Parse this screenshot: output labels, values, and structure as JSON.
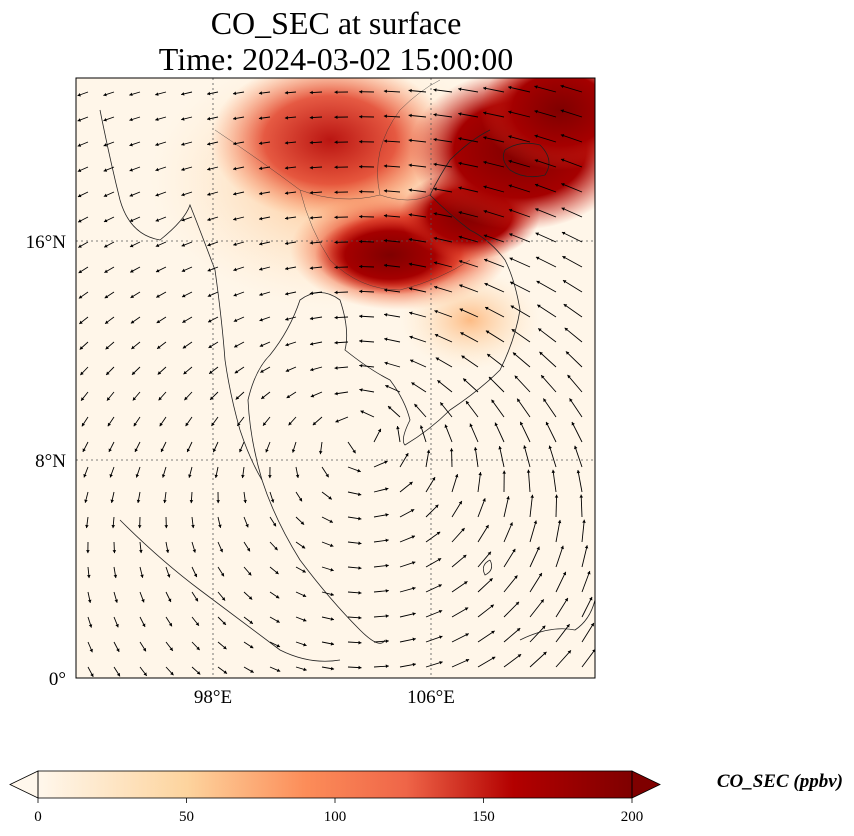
{
  "title_line1": "CO_SEC at surface",
  "title_line2": "Time: 2024-03-02 15:00:00",
  "map": {
    "lat_labels": [
      "16°N",
      "8°N",
      "0°"
    ],
    "lon_labels": [
      "98°E",
      "106°E"
    ],
    "lat_values": [
      16,
      8,
      0
    ],
    "lon_values": [
      98,
      106
    ],
    "extent": {
      "lon_min": 93,
      "lon_max": 112,
      "lat_min": 0,
      "lat_max": 22
    },
    "gridlines": "dotted",
    "overlay": "wind vectors",
    "colormap": "OrRd",
    "colors": {
      "low": "#fff7ec",
      "mid": "#fc8d59",
      "high": "#7f0000"
    }
  },
  "colorbar": {
    "label": "CO_SEC (ppbv)",
    "ticks": [
      "0",
      "50",
      "100",
      "150",
      "200"
    ],
    "tick_values": [
      0,
      50,
      100,
      150,
      200
    ],
    "extend": "both"
  }
}
